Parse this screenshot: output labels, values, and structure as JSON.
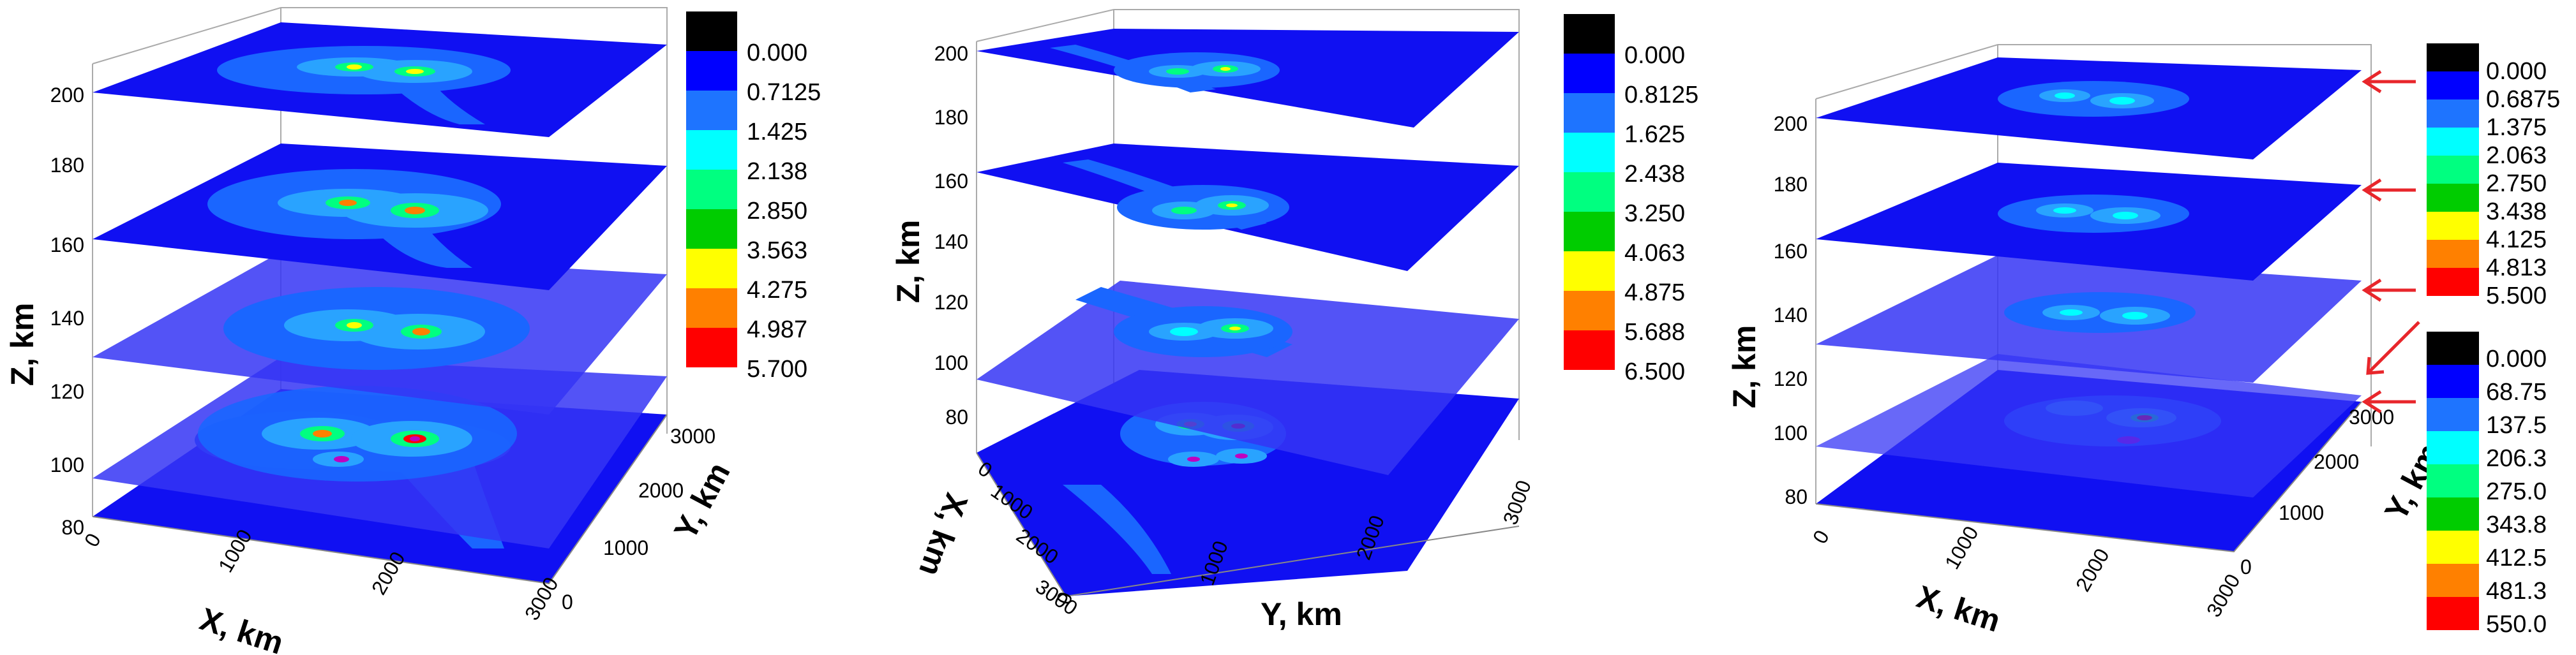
{
  "colors": {
    "plane": "#1010f2",
    "plane_translucent": "#3535f5",
    "contour_light": "#1a66ff",
    "contour_mid": "#29a3ff",
    "arrow": "#e8262b"
  },
  "colormap": [
    "#000000",
    "#0000ff",
    "#1e74ff",
    "#00ffff",
    "#00ff80",
    "#00cc00",
    "#ffff00",
    "#ff8000",
    "#ff0000"
  ],
  "panels": [
    {
      "z_ticks": [
        "80",
        "100",
        "120",
        "140",
        "160",
        "180",
        "200"
      ],
      "z_label": "Z, km",
      "x_label": "X, km",
      "y_label": "Y, km",
      "x_ticks": [
        "0",
        "1000",
        "2000",
        "3000"
      ],
      "y_ticks": [
        "0",
        "1000",
        "2000",
        "3000"
      ],
      "colorbar": [
        "0.000",
        "0.7125",
        "1.425",
        "2.138",
        "2.850",
        "3.563",
        "4.275",
        "4.987",
        "5.700"
      ]
    },
    {
      "z_ticks": [
        "80",
        "100",
        "120",
        "140",
        "160",
        "180",
        "200"
      ],
      "z_label": "Z, km",
      "x_label": "X, km",
      "y_label": "Y, km",
      "x_ticks": [
        "0",
        "1000",
        "2000",
        "3000"
      ],
      "y_ticks": [
        "0",
        "1000",
        "2000",
        "3000"
      ],
      "colorbar": [
        "0.000",
        "0.8125",
        "1.625",
        "2.438",
        "3.250",
        "4.063",
        "4.875",
        "5.688",
        "6.500"
      ]
    },
    {
      "z_ticks": [
        "80",
        "100",
        "120",
        "140",
        "160",
        "180",
        "200"
      ],
      "z_label": "Z, km",
      "x_label": "X, km",
      "y_label": "Y, km",
      "x_ticks": [
        "0",
        "1000",
        "2000",
        "3000"
      ],
      "y_ticks": [
        "0",
        "1000",
        "2000",
        "3000"
      ],
      "colorbar": [
        "0.000",
        "0.6875",
        "1.375",
        "2.063",
        "2.750",
        "3.438",
        "4.125",
        "4.813",
        "5.500"
      ],
      "colorbar2": [
        "0.000",
        "68.75",
        "137.5",
        "206.3",
        "275.0",
        "343.8",
        "412.5",
        "481.3",
        "550.0"
      ]
    }
  ],
  "chart_data": [
    {
      "type": "heatmap",
      "description_levels_km": [
        100,
        120,
        160,
        200
      ],
      "z_range": [
        80,
        200
      ],
      "x_range": [
        0,
        3000
      ],
      "y_range": [
        0,
        3000
      ],
      "colorbar_range": [
        0,
        5.7
      ]
    },
    {
      "type": "heatmap",
      "description_levels_km": [
        90,
        120,
        160,
        200
      ],
      "z_range": [
        80,
        200
      ],
      "x_range": [
        0,
        3000
      ],
      "y_range": [
        0,
        3000
      ],
      "colorbar_range": [
        0,
        6.5
      ]
    },
    {
      "type": "heatmap",
      "description_levels_km": [
        120,
        150,
        180,
        200
      ],
      "z_range": [
        80,
        200
      ],
      "x_range": [
        0,
        3000
      ],
      "y_range": [
        0,
        3000
      ],
      "colorbar_range": [
        0,
        5.5
      ],
      "colorbar2_range": [
        0,
        550
      ]
    }
  ]
}
